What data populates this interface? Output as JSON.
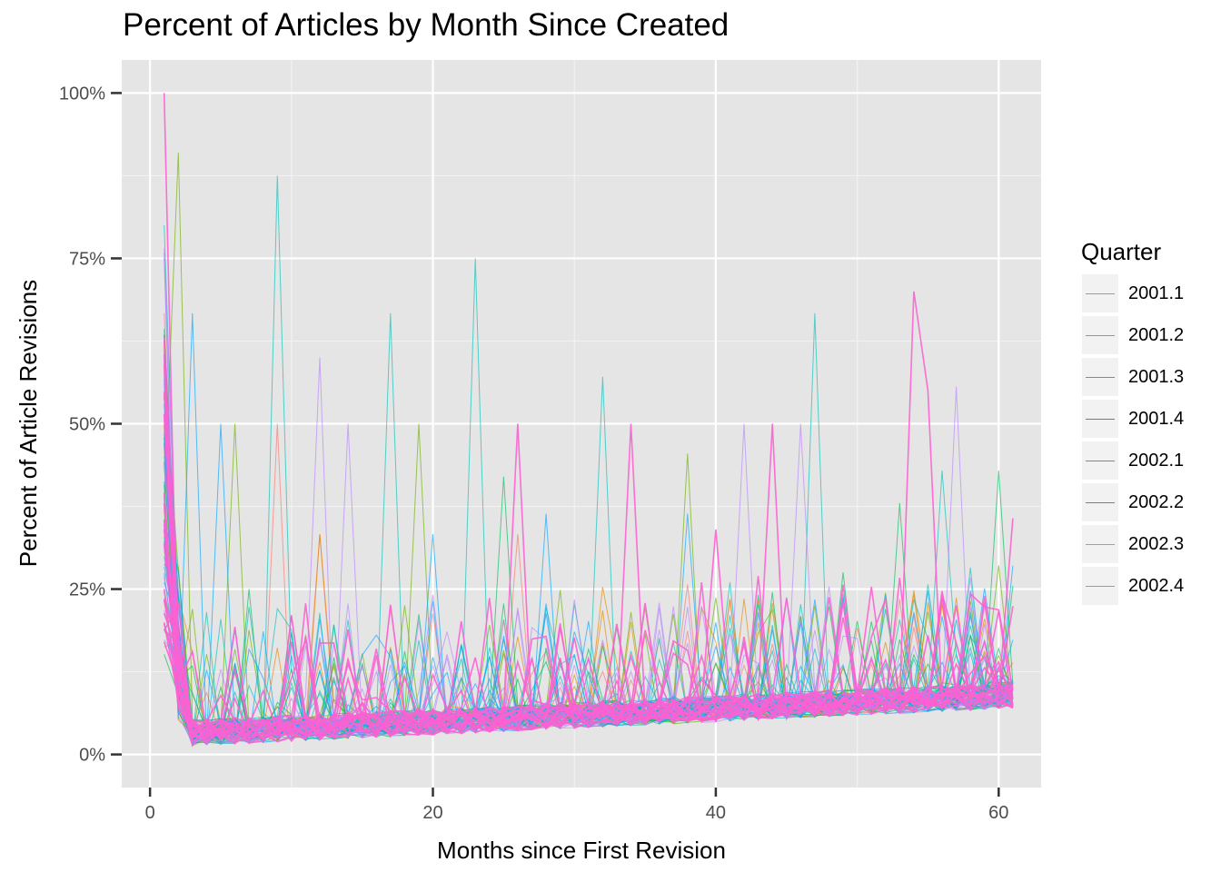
{
  "chart_data": {
    "type": "line",
    "title": "Percent of Articles by Month Since Created",
    "xlabel": "Months since First Revision",
    "ylabel": "Percent of Article Revisions",
    "xlim": [
      -2,
      63
    ],
    "ylim": [
      -0.05,
      1.05
    ],
    "x_ticks": [
      0,
      20,
      40,
      60
    ],
    "y_ticks": [
      0,
      0.25,
      0.5,
      0.75,
      1.0
    ],
    "y_tick_labels": [
      "0%",
      "25%",
      "50%",
      "75%",
      "100%"
    ],
    "grid": true,
    "legend": {
      "title": "Quarter",
      "position": "right"
    },
    "series": [
      {
        "name": "2001.1",
        "color": "#F8766D",
        "peaks": [
          [
            1,
            0.667
          ],
          [
            9,
            0.5
          ],
          [
            12,
            0.333
          ],
          [
            26,
            0.333
          ]
        ]
      },
      {
        "name": "2001.2",
        "color": "#E58700",
        "peaks": [
          [
            1,
            0.5
          ],
          [
            12,
            0.333
          ],
          [
            30,
            0.12
          ]
        ]
      },
      {
        "name": "2001.3",
        "color": "#6BB100",
        "peaks": [
          [
            2,
            0.91
          ],
          [
            6,
            0.5
          ],
          [
            19,
            0.5
          ],
          [
            38,
            0.455
          ],
          [
            60,
            0.286
          ]
        ]
      },
      {
        "name": "2001.4",
        "color": "#00BC5A",
        "peaks": [
          [
            7,
            0.25
          ],
          [
            25,
            0.42
          ],
          [
            53,
            0.38
          ],
          [
            60,
            0.429
          ]
        ]
      },
      {
        "name": "2002.1",
        "color": "#00C0B8",
        "peaks": [
          [
            1,
            0.8
          ],
          [
            9,
            0.875
          ],
          [
            17,
            0.667
          ],
          [
            23,
            0.75
          ],
          [
            32,
            0.571
          ],
          [
            47,
            0.667
          ],
          [
            56,
            0.429
          ]
        ]
      },
      {
        "name": "2002.2",
        "color": "#00A5FF",
        "peaks": [
          [
            3,
            0.667
          ],
          [
            5,
            0.5
          ],
          [
            20,
            0.333
          ],
          [
            28,
            0.364
          ],
          [
            38,
            0.364
          ]
        ]
      },
      {
        "name": "2002.3",
        "color": "#B983FF",
        "peaks": [
          [
            1,
            0.75
          ],
          [
            12,
            0.6
          ],
          [
            14,
            0.5
          ],
          [
            42,
            0.5
          ],
          [
            46,
            0.5
          ],
          [
            57,
            0.556
          ]
        ]
      },
      {
        "name": "2002.4",
        "color": "#FD61D1",
        "peaks": [
          [
            1,
            1.0
          ],
          [
            26,
            0.5
          ],
          [
            34,
            0.5
          ],
          [
            40,
            0.34
          ],
          [
            44,
            0.5
          ],
          [
            54,
            0.7
          ],
          [
            55,
            0.55
          ],
          [
            61,
            0.357
          ]
        ]
      }
    ]
  }
}
